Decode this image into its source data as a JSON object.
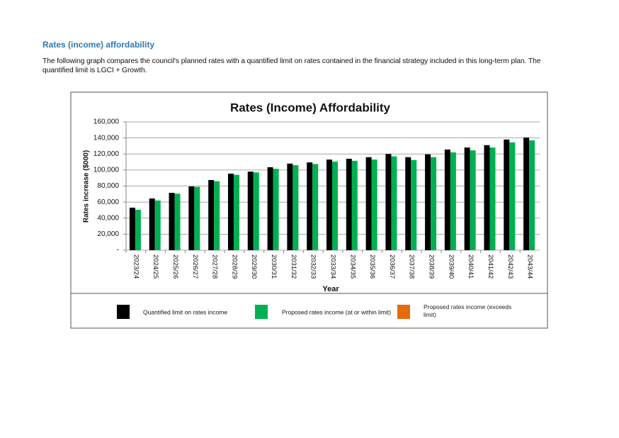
{
  "heading": "Rates (income) affordability",
  "paragraph": "The following graph compares the council's planned rates with a quantified limit on rates contained in the financial strategy included in this long-term plan. The quantified limit is LGCI + Growth.",
  "chart_data": {
    "type": "bar",
    "title": "Rates (Income) Affordability",
    "x_label": "Year",
    "y_label": "Rates increase ($000)",
    "categories": [
      "2023/24",
      "2024/25",
      "2025/26",
      "2026/27",
      "2027/28",
      "2028/29",
      "2029/30",
      "2030/31",
      "2031/32",
      "2032/33",
      "2033/34",
      "2034/35",
      "2035/36",
      "2036/37",
      "2037/38",
      "2038/39",
      "2039/40",
      "2040/41",
      "2041/42",
      "2042/43",
      "2043/44"
    ],
    "series": [
      {
        "name": "Quantified limit on rates income",
        "color": "#000000",
        "values": [
          53000,
          64500,
          71500,
          79500,
          87500,
          95500,
          98000,
          103500,
          108000,
          109500,
          113000,
          114000,
          116000,
          120000,
          116000,
          119500,
          125500,
          128000,
          131000,
          138000,
          140500
        ]
      },
      {
        "name": "Proposed rates income (at or within limit)",
        "color": "#00b050",
        "values": [
          50500,
          62000,
          70500,
          79000,
          86000,
          94000,
          97000,
          101500,
          106000,
          107500,
          110500,
          111500,
          113000,
          117000,
          112500,
          116000,
          122000,
          124500,
          128000,
          134500,
          137000
        ]
      },
      {
        "name": "Proposed rates income (exceeds limit)",
        "color": "#e46c0a",
        "values": [
          null,
          null,
          null,
          null,
          null,
          null,
          null,
          null,
          null,
          null,
          null,
          null,
          null,
          null,
          null,
          null,
          null,
          null,
          null,
          null,
          null
        ]
      }
    ],
    "ylim": [
      0,
      160000
    ],
    "yticks": [
      {
        "value": 0,
        "label": "-"
      },
      {
        "value": 20000,
        "label": "20,000"
      },
      {
        "value": 40000,
        "label": "40,000"
      },
      {
        "value": 60000,
        "label": "60,000"
      },
      {
        "value": 80000,
        "label": "80,000"
      },
      {
        "value": 100000,
        "label": "100,000"
      },
      {
        "value": 120000,
        "label": "120,000"
      },
      {
        "value": 140000,
        "label": "140,000"
      },
      {
        "value": 160000,
        "label": "160,000"
      }
    ],
    "grid": true,
    "legend": "bottom"
  }
}
